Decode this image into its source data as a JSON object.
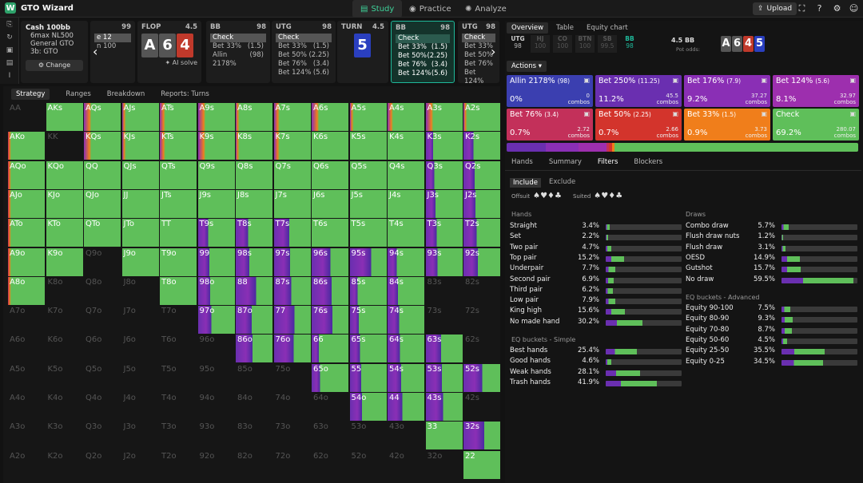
{
  "app": {
    "title": "GTO Wizard",
    "nav": [
      "Study",
      "Practice",
      "Analyze"
    ],
    "upload": "Upload"
  },
  "config": {
    "title": "Cash 100bb",
    "rows": [
      "6max NL500",
      "General GTO",
      "3b: GTO"
    ],
    "change": "Change"
  },
  "strips": [
    {
      "pos": "",
      "stack": "99",
      "partial": true,
      "actions": [
        "e 12",
        "n 100"
      ]
    },
    {
      "pos": "FLOP",
      "stack": "4.5",
      "cards": [
        "A",
        "6",
        "4"
      ],
      "ai": "AI solve"
    },
    {
      "pos": "BB",
      "stack": "98",
      "actions": [
        [
          "Check",
          ""
        ],
        [
          "Bet 33%",
          "(1.5)"
        ],
        [
          "Allin 2178%",
          "(98)"
        ]
      ]
    },
    {
      "pos": "UTG",
      "stack": "98",
      "actions": [
        [
          "Check",
          ""
        ],
        [
          "Bet 33%",
          "(1.5)"
        ],
        [
          "Bet 50%",
          "(2.25)"
        ],
        [
          "Bet 76%",
          "(3.4)"
        ],
        [
          "Bet 124%",
          "(5.6)"
        ]
      ]
    },
    {
      "pos": "TURN",
      "stack": "4.5",
      "cards": [
        "5"
      ]
    },
    {
      "pos": "BB",
      "stack": "98",
      "actions": [
        [
          "Check",
          ""
        ],
        [
          "Bet 33%",
          "(1.5)"
        ],
        [
          "Bet 50%",
          "(2.25)"
        ],
        [
          "Bet 76%",
          "(3.4)"
        ],
        [
          "Bet 124%",
          "(5.6)"
        ]
      ]
    },
    {
      "pos": "UTG",
      "stack": "98",
      "actions": [
        [
          "Check",
          ""
        ],
        [
          "Bet 33%",
          ""
        ],
        [
          "Bet 50%",
          ""
        ],
        [
          "Bet 76%",
          ""
        ],
        [
          "Bet 124%",
          ""
        ]
      ]
    }
  ],
  "leftTabs": [
    "Strategy",
    "Ranges",
    "Breakdown",
    "Reports: Turns"
  ],
  "rightTabs": [
    "Overview",
    "Table",
    "Equity chart"
  ],
  "positions": [
    [
      "UTG",
      "98"
    ],
    [
      "HJ",
      "100"
    ],
    [
      "CO",
      "100"
    ],
    [
      "BTN",
      "100"
    ],
    [
      "SB",
      "99.5"
    ],
    [
      "BB",
      "98"
    ]
  ],
  "pot": {
    "bb": "4.5 BB",
    "label": "Pot odds:"
  },
  "board": [
    [
      "A",
      "#555"
    ],
    [
      "6",
      "#555"
    ],
    [
      "4",
      "#c0392b"
    ],
    [
      "5",
      "#2a3fbf"
    ]
  ],
  "actionsLabel": "Actions",
  "actionButtons": [
    {
      "name": "Allin 2178%",
      "size": "(98)",
      "pct": "0%",
      "combos": "0",
      "color": "#3b3fb0"
    },
    {
      "name": "Bet 250%",
      "size": "(11.25)",
      "pct": "11.2%",
      "combos": "45.5",
      "color": "#6a2fb0"
    },
    {
      "name": "Bet 176%",
      "size": "(7.9)",
      "pct": "9.2%",
      "combos": "37.27",
      "color": "#8a2fb5"
    },
    {
      "name": "Bet 124%",
      "size": "(5.6)",
      "pct": "8.1%",
      "combos": "32.97",
      "color": "#9d2fae"
    },
    {
      "name": "Bet 76%",
      "size": "(3.4)",
      "pct": "0.7%",
      "combos": "2.72",
      "color": "#c3305a"
    },
    {
      "name": "Bet 50%",
      "size": "(2.25)",
      "pct": "0.7%",
      "combos": "2.66",
      "color": "#d3342c"
    },
    {
      "name": "Bet 33%",
      "size": "(1.5)",
      "pct": "0.9%",
      "combos": "3.73",
      "color": "#f07e1b"
    },
    {
      "name": "Check",
      "size": "",
      "pct": "69.2%",
      "combos": "280.07",
      "color": "#5fbf5a"
    }
  ],
  "subTabs": [
    "Hands",
    "Summary",
    "Filters",
    "Blockers"
  ],
  "include": [
    "Include",
    "Exclude"
  ],
  "offsuit": "Offsuit",
  "suited": "Suited",
  "handsTitle": "Hands",
  "hands": [
    [
      "Straight",
      "3.4%",
      3.4
    ],
    [
      "Set",
      "2.2%",
      2.2
    ],
    [
      "Two pair",
      "4.7%",
      4.7
    ],
    [
      "Top pair",
      "15.2%",
      15.2
    ],
    [
      "Underpair",
      "7.7%",
      7.7
    ],
    [
      "Second pair",
      "6.9%",
      6.9
    ],
    [
      "Third pair",
      "6.2%",
      6.2
    ],
    [
      "Low pair",
      "7.9%",
      7.9
    ],
    [
      "King high",
      "15.6%",
      15.6
    ],
    [
      "No made hand",
      "30.2%",
      30.2
    ]
  ],
  "eqSimpleTitle": "EQ buckets - Simple",
  "eqSimple": [
    [
      "Best hands",
      "25.4%",
      25.4
    ],
    [
      "Good hands",
      "4.6%",
      4.6
    ],
    [
      "Weak hands",
      "28.1%",
      28.1
    ],
    [
      "Trash hands",
      "41.9%",
      41.9
    ]
  ],
  "drawsTitle": "Draws",
  "draws": [
    [
      "Combo draw",
      "5.7%",
      5.7
    ],
    [
      "Flush draw nuts",
      "1.2%",
      1.2
    ],
    [
      "Flush draw",
      "3.1%",
      3.1
    ],
    [
      "OESD",
      "14.9%",
      14.9
    ],
    [
      "Gutshot",
      "15.7%",
      15.7
    ],
    [
      "No draw",
      "59.5%",
      59.5
    ]
  ],
  "eqAdvTitle": "EQ buckets - Advanced",
  "eqAdv": [
    [
      "Equity 90-100",
      "7.5%",
      7.5
    ],
    [
      "Equity 80-90",
      "9.3%",
      9.3
    ],
    [
      "Equity 70-80",
      "8.7%",
      8.7
    ],
    [
      "Equity 50-60",
      "4.5%",
      4.5
    ],
    [
      "Equity 25-50",
      "35.5%",
      35.5
    ],
    [
      "Equity 0-25",
      "34.5%",
      34.5
    ]
  ],
  "ranks": [
    "A",
    "K",
    "Q",
    "J",
    "T",
    "9",
    "8",
    "7",
    "6",
    "5",
    "4",
    "3",
    "2"
  ]
}
